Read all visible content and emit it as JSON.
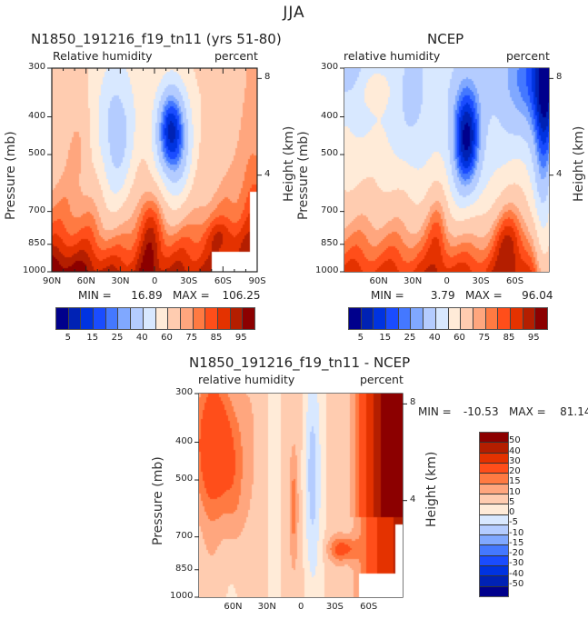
{
  "suptitle": "JJA",
  "chart_data": [
    {
      "type": "heatmap",
      "id": "model",
      "title": "N1850_191216_f19_tn11 (yrs 51-80)",
      "left_subtitle": "Relative humidity",
      "right_subtitle": "percent",
      "ylabel": "Pressure (mb)",
      "ylabel_right": "Height (km)",
      "xticks": [
        "90N",
        "60N",
        "30N",
        "0",
        "30S",
        "60S",
        "90S"
      ],
      "xlim": [
        "90N",
        "90S"
      ],
      "yticks": [
        300,
        400,
        500,
        700,
        850,
        1000
      ],
      "ylim": [
        1000,
        300
      ],
      "height_ticks": [
        8,
        4
      ],
      "min_label": "MIN =",
      "min": "16.89",
      "max_label": "MAX =",
      "max": "106.25",
      "colorbar": {
        "levels": [
          5,
          10,
          15,
          20,
          25,
          30,
          40,
          50,
          60,
          70,
          75,
          80,
          85,
          90,
          95
        ],
        "labels": [
          "5",
          "15",
          "25",
          "40",
          "60",
          "75",
          "85",
          "95"
        ]
      }
    },
    {
      "type": "heatmap",
      "id": "ncep",
      "title": "NCEP",
      "left_subtitle": "relative humidity",
      "right_subtitle": "percent",
      "ylabel": "Pressure (mb)",
      "ylabel_right": "Height (km)",
      "xticks": [
        "60N",
        "30N",
        "0",
        "30S",
        "60S"
      ],
      "xlim": [
        "90N",
        "90S"
      ],
      "yticks": [
        300,
        400,
        500,
        700,
        850,
        1000
      ],
      "ylim": [
        1000,
        300
      ],
      "height_ticks": [
        8,
        4
      ],
      "min_label": "MIN =",
      "min": "3.79",
      "max_label": "MAX =",
      "max": "96.04",
      "colorbar": {
        "levels": [
          5,
          10,
          15,
          20,
          25,
          30,
          40,
          50,
          60,
          70,
          75,
          80,
          85,
          90,
          95
        ],
        "labels": [
          "5",
          "15",
          "25",
          "40",
          "60",
          "75",
          "85",
          "95"
        ]
      }
    },
    {
      "type": "heatmap",
      "id": "diff",
      "title": "N1850_191216_f19_tn11 - NCEP",
      "left_subtitle": "relative humidity",
      "right_subtitle": "percent",
      "ylabel": "Pressure (mb)",
      "ylabel_right": "Height (km)",
      "xticks": [
        "60N",
        "30N",
        "0",
        "30S",
        "60S"
      ],
      "xlim": [
        "90N",
        "90S"
      ],
      "yticks": [
        300,
        400,
        500,
        700,
        850,
        1000
      ],
      "ylim": [
        1000,
        300
      ],
      "height_ticks": [
        8,
        4
      ],
      "min_label": "MIN =",
      "min": "-10.53",
      "max_label": "MAX =",
      "max": "81.14",
      "colorbar": {
        "levels": [
          -50,
          -40,
          -30,
          -20,
          -15,
          -10,
          -5,
          0,
          5,
          10,
          15,
          20,
          30,
          40,
          50
        ],
        "labels": [
          "-50",
          "-40",
          "-30",
          "-20",
          "-15",
          "-10",
          "-5",
          "0",
          "5",
          "10",
          "15",
          "20",
          "30",
          "40",
          "50"
        ]
      }
    }
  ],
  "palette": [
    "#00008c",
    "#0022b4",
    "#0033e0",
    "#1a4cff",
    "#4478ff",
    "#80a8ff",
    "#b4ccff",
    "#d8e8ff",
    "#ffebd8",
    "#ffccb0",
    "#ffa67e",
    "#ff7a42",
    "#ff4e1a",
    "#e43200",
    "#b41e00",
    "#8c0000"
  ],
  "missing_color": "#ffffff"
}
